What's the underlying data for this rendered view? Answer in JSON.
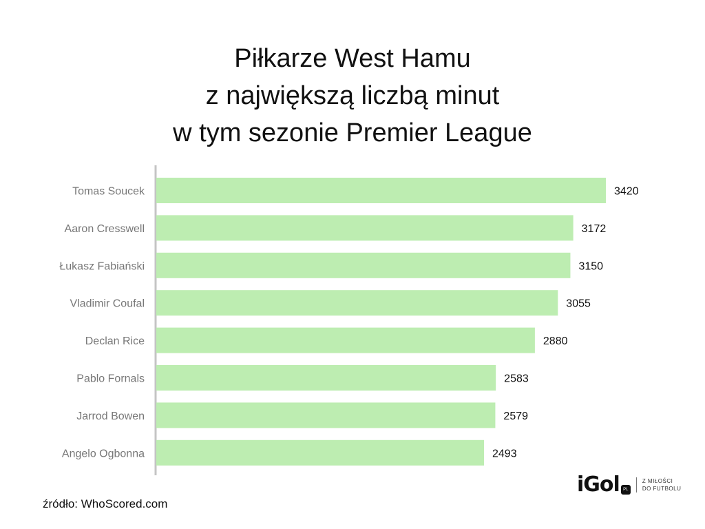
{
  "chart_data": {
    "type": "bar",
    "orientation": "horizontal",
    "title_lines": [
      "Piłkarze West Hamu",
      "z największą liczbą minut",
      "w tym sezonie Premier League"
    ],
    "categories": [
      "Tomas Soucek",
      "Aaron Cresswell",
      "Łukasz Fabiański",
      "Vladimir Coufal",
      "Declan Rice",
      "Pablo Fornals",
      "Jarrod Bowen",
      "Angelo Ogbonna"
    ],
    "values": [
      3420,
      3172,
      3150,
      3055,
      2880,
      2583,
      2579,
      2493
    ],
    "xlim": [
      0,
      3420
    ],
    "grid": false,
    "bar_color": "#bdedb1",
    "xlabel": "",
    "ylabel": ""
  },
  "source": "źródło: WhoScored.com",
  "logo": {
    "name": "iGol",
    "badge": "PL",
    "tagline_1": "Z MIŁOŚCI",
    "tagline_2": "DO FUTBOLU"
  }
}
